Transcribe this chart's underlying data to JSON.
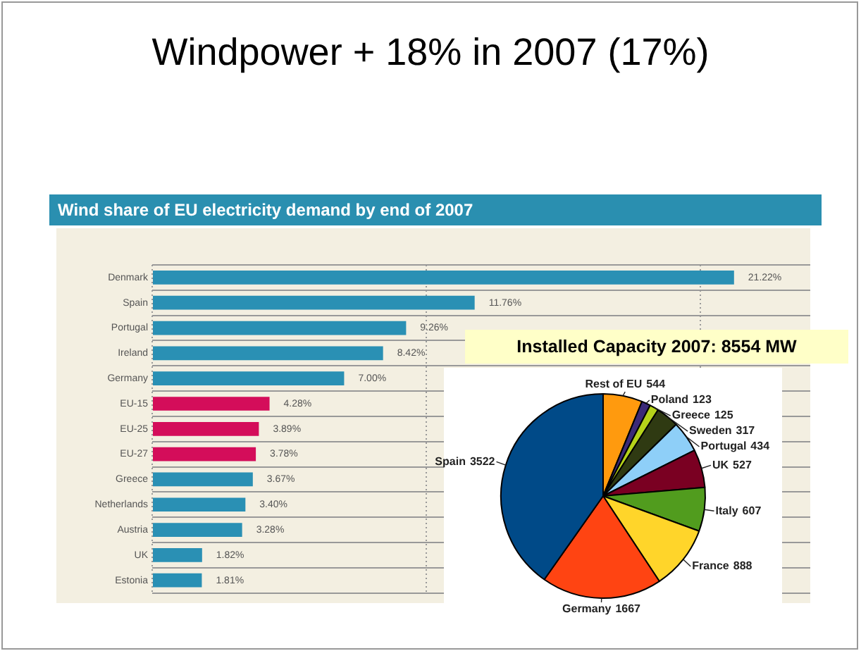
{
  "chart_data": [
    {
      "type": "other",
      "title": "Windpower + 18% in 2007 (17%)"
    },
    {
      "type": "bar",
      "title": "Wind share of EU electricity demand by end of 2007",
      "orientation": "horizontal",
      "categories": [
        "Denmark",
        "Spain",
        "Portugal",
        "Ireland",
        "Germany",
        "EU-15",
        "EU-25",
        "EU-27",
        "Greece",
        "Netherlands",
        "Austria",
        "UK",
        "Estonia"
      ],
      "values": [
        21.22,
        11.76,
        9.26,
        8.42,
        7.0,
        4.28,
        3.89,
        3.78,
        3.67,
        3.4,
        3.28,
        1.82,
        1.81
      ],
      "value_labels": [
        "21.22%",
        "11.76%",
        "9.26%",
        "8.42%",
        "7.00%",
        "4.28%",
        "3.89%",
        "3.78%",
        "3.67%",
        "3.40%",
        "3.28%",
        "1.82%",
        "1.81%"
      ],
      "colors": [
        "#2a90b4",
        "#2a90b4",
        "#2a90b4",
        "#2a90b4",
        "#2a90b4",
        "#d40d5a",
        "#d40d5a",
        "#d40d5a",
        "#2a90b4",
        "#2a90b4",
        "#2a90b4",
        "#2a90b4",
        "#2a90b4"
      ],
      "xlim": [
        0,
        24
      ],
      "xticks": [
        {
          "value": 0,
          "label": null
        },
        {
          "value": 10,
          "label": null
        },
        {
          "value": 20,
          "label": null
        }
      ],
      "grid": true,
      "tick_labels": "y"
    },
    {
      "type": "pie",
      "title": "Installed Capacity 2007: 8554 MW",
      "categories": [
        "Rest of EU",
        "Poland",
        "Greece",
        "Sweden",
        "Portugal",
        "UK",
        "Italy",
        "France",
        "Germany",
        "Spain"
      ],
      "values": [
        544,
        123,
        125,
        317,
        434,
        527,
        607,
        888,
        1667,
        3522
      ],
      "colors": [
        "#ff9a0e",
        "#3b2a78",
        "#b5d21a",
        "#2f3a12",
        "#8ecff8",
        "#7a0022",
        "#519c1e",
        "#ffd52a",
        "#ff4412",
        "#004a88"
      ],
      "data_labels": true
    }
  ]
}
